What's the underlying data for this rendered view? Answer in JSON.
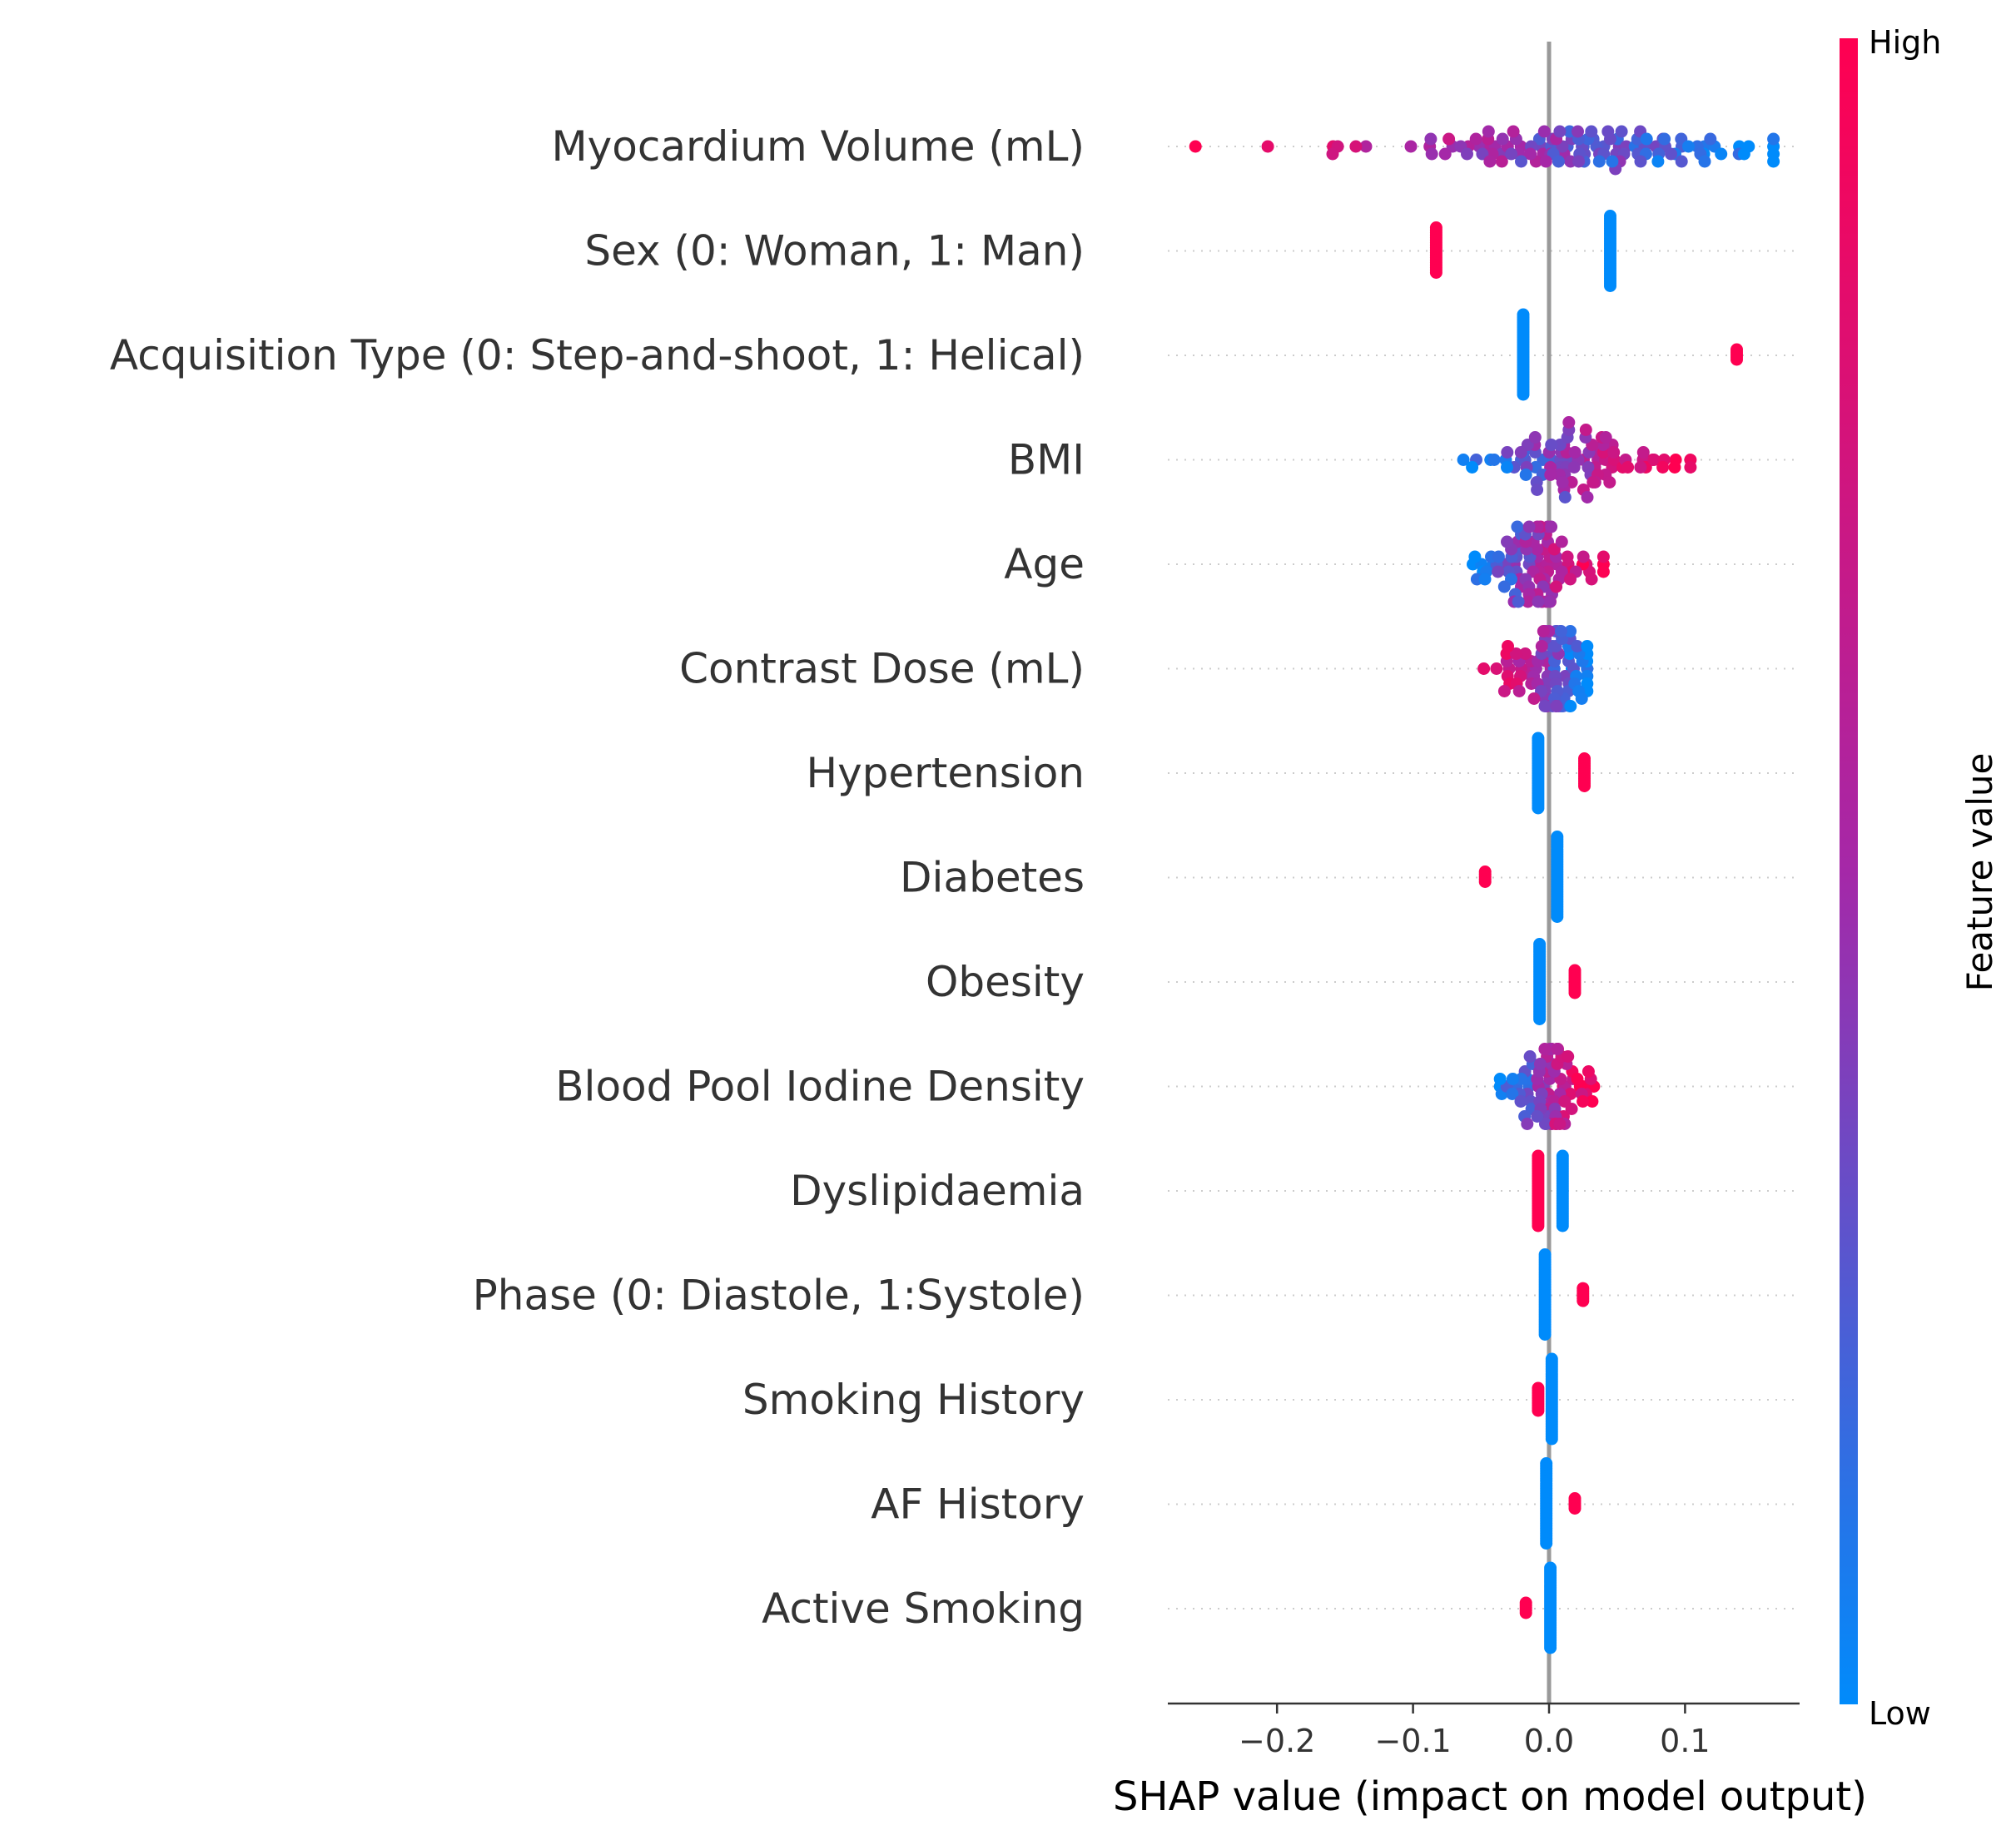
{
  "chart_data": {
    "type": "scatter",
    "subtype": "shap-beeswarm",
    "title": "",
    "xlabel": "SHAP value (impact on model output)",
    "ylabel": "",
    "xlim": [
      -0.28,
      0.185
    ],
    "xticks": [
      -0.2,
      -0.1,
      0.0,
      0.1
    ],
    "xtick_labels": [
      "−0.2",
      "−0.1",
      "0.0",
      "0.1"
    ],
    "grid": "dotted row lines",
    "zero_line": true,
    "colorbar": {
      "title": "Feature value",
      "high_label": "High",
      "low_label": "Low",
      "high_color": "#ff0051",
      "mid_color": "#a528a8",
      "low_color": "#008bfb"
    },
    "features": [
      {
        "name": "Myocardium Volume (mL)",
        "kind": "continuous",
        "range": [
          -0.26,
          0.165
        ],
        "density": 120,
        "corr": "negative"
      },
      {
        "name": "Sex (0: Woman, 1: Man)",
        "kind": "binary",
        "groups": [
          {
            "x": -0.083,
            "color": "high",
            "n": 40
          },
          {
            "x": 0.045,
            "color": "low",
            "n": 60
          }
        ]
      },
      {
        "name": "Acquisition Type (0: Step-and-shoot, 1: Helical)",
        "kind": "binary",
        "groups": [
          {
            "x": -0.019,
            "color": "low",
            "n": 70
          },
          {
            "x": 0.138,
            "color": "high",
            "n": 10
          }
        ]
      },
      {
        "name": "BMI",
        "kind": "continuous",
        "range": [
          -0.063,
          0.104
        ],
        "density": 90,
        "corr": "positive"
      },
      {
        "name": "Age",
        "kind": "continuous",
        "range": [
          -0.056,
          0.04
        ],
        "density": 90,
        "corr": "positive"
      },
      {
        "name": "Contrast Dose (mL)",
        "kind": "continuous",
        "range": [
          -0.048,
          0.028
        ],
        "density": 90,
        "corr": "negative"
      },
      {
        "name": "Hypertension",
        "kind": "binary",
        "groups": [
          {
            "x": -0.008,
            "color": "low",
            "n": 60
          },
          {
            "x": 0.026,
            "color": "high",
            "n": 25
          }
        ]
      },
      {
        "name": "Diabetes",
        "kind": "binary",
        "groups": [
          {
            "x": -0.047,
            "color": "high",
            "n": 10
          },
          {
            "x": 0.006,
            "color": "low",
            "n": 70
          }
        ]
      },
      {
        "name": "Obesity",
        "kind": "binary",
        "groups": [
          {
            "x": -0.007,
            "color": "low",
            "n": 65
          },
          {
            "x": 0.019,
            "color": "high",
            "n": 20
          }
        ]
      },
      {
        "name": "Blood Pool Iodine Density",
        "kind": "continuous",
        "range": [
          -0.036,
          0.033
        ],
        "density": 80,
        "corr": "positive"
      },
      {
        "name": "Dyslipidaemia ",
        "kind": "binary",
        "groups": [
          {
            "x": -0.008,
            "color": "high",
            "n": 60
          },
          {
            "x": 0.01,
            "color": "low",
            "n": 60
          }
        ]
      },
      {
        "name": "Phase (0: Diastole, 1:Systole)",
        "kind": "binary",
        "groups": [
          {
            "x": -0.003,
            "color": "low",
            "n": 70
          },
          {
            "x": 0.025,
            "color": "high",
            "n": 12
          }
        ]
      },
      {
        "name": "Smoking History",
        "kind": "binary",
        "groups": [
          {
            "x": -0.008,
            "color": "high",
            "n": 20
          },
          {
            "x": 0.002,
            "color": "low",
            "n": 70
          }
        ]
      },
      {
        "name": "AF History",
        "kind": "binary",
        "groups": [
          {
            "x": -0.002,
            "color": "low",
            "n": 70
          },
          {
            "x": 0.019,
            "color": "high",
            "n": 10
          }
        ]
      },
      {
        "name": "Active Smoking",
        "kind": "binary",
        "groups": [
          {
            "x": -0.017,
            "color": "high",
            "n": 10
          },
          {
            "x": 0.001,
            "color": "low",
            "n": 70
          }
        ]
      }
    ]
  }
}
